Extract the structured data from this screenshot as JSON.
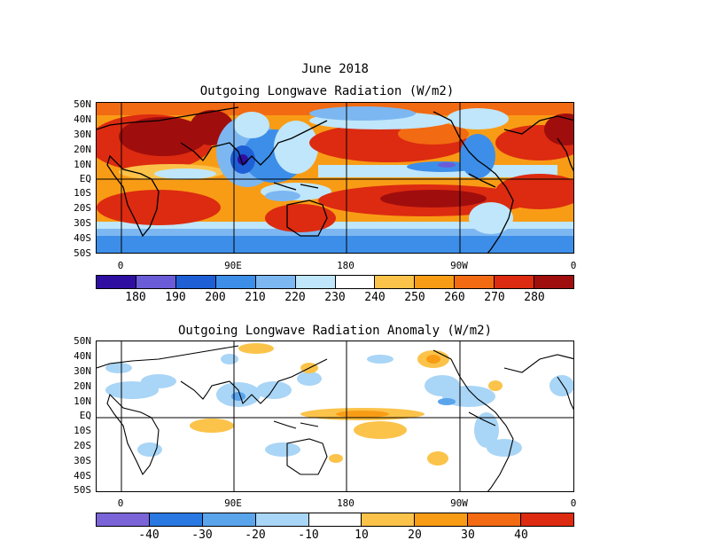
{
  "header": {
    "title": "June 2018",
    "subtitle": "Outgoing Longwave Radiation (W/m2)"
  },
  "panel_bottom": {
    "title": "Outgoing Longwave Radiation Anomaly (W/m2)"
  },
  "y_labels": [
    "50N",
    "40N",
    "30N",
    "20N",
    "10N",
    "EQ",
    "10S",
    "20S",
    "30S",
    "40S",
    "50S"
  ],
  "x_labels": [
    "0",
    "90E",
    "180",
    "90W",
    "0"
  ],
  "colorbar_top": {
    "labels": [
      "180",
      "190",
      "200",
      "210",
      "220",
      "230",
      "240",
      "250",
      "260",
      "270",
      "280"
    ],
    "colors": [
      "#2e0fa1",
      "#6a5cd8",
      "#1f5fd6",
      "#3d8ee8",
      "#7db7f2",
      "#bfe6fb",
      "#ffffff",
      "#fbc34a",
      "#f99c15",
      "#f26a12",
      "#dc2b10",
      "#a00d0d"
    ]
  },
  "colorbar_bottom": {
    "labels": [
      "-40",
      "-30",
      "-20",
      "-10",
      "10",
      "20",
      "30",
      "40"
    ],
    "colors": [
      "#7b64d8",
      "#2a78e2",
      "#5aa4ec",
      "#a9d5f6",
      "#ffffff",
      "#fbc34a",
      "#f99c15",
      "#f26a12",
      "#dc2b10"
    ]
  }
}
